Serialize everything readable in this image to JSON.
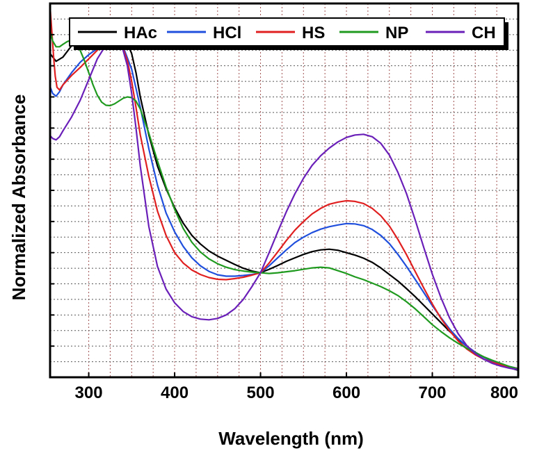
{
  "chart_data": {
    "type": "line",
    "xlabel": "Wavelength (nm)",
    "ylabel": "Normalized Absorbance",
    "xlim": [
      255,
      800
    ],
    "x_ticks": [
      300,
      400,
      500,
      600,
      700,
      800
    ],
    "y_ticks_labeled": false,
    "grid": true,
    "legend_position": "top",
    "series": [
      {
        "name": "HAc",
        "color": "#000000",
        "points": [
          [
            255,
            0.935
          ],
          [
            262,
            0.913
          ],
          [
            270,
            0.925
          ],
          [
            280,
            0.958
          ],
          [
            290,
            0.972
          ],
          [
            300,
            0.967
          ],
          [
            310,
            0.962
          ],
          [
            320,
            0.968
          ],
          [
            330,
            0.972
          ],
          [
            340,
            0.97
          ],
          [
            345,
            0.965
          ],
          [
            350,
            0.935
          ],
          [
            355,
            0.88
          ],
          [
            360,
            0.81
          ],
          [
            370,
            0.7
          ],
          [
            380,
            0.61
          ],
          [
            390,
            0.545
          ],
          [
            400,
            0.49
          ],
          [
            410,
            0.445
          ],
          [
            420,
            0.41
          ],
          [
            430,
            0.385
          ],
          [
            440,
            0.365
          ],
          [
            450,
            0.35
          ],
          [
            460,
            0.338
          ],
          [
            470,
            0.326
          ],
          [
            480,
            0.315
          ],
          [
            490,
            0.307
          ],
          [
            500,
            0.302
          ],
          [
            510,
            0.312
          ],
          [
            520,
            0.323
          ],
          [
            530,
            0.335
          ],
          [
            540,
            0.345
          ],
          [
            550,
            0.355
          ],
          [
            560,
            0.363
          ],
          [
            570,
            0.368
          ],
          [
            580,
            0.37
          ],
          [
            590,
            0.367
          ],
          [
            600,
            0.36
          ],
          [
            610,
            0.353
          ],
          [
            620,
            0.344
          ],
          [
            630,
            0.332
          ],
          [
            640,
            0.316
          ],
          [
            650,
            0.297
          ],
          [
            660,
            0.278
          ],
          [
            670,
            0.256
          ],
          [
            680,
            0.233
          ],
          [
            690,
            0.208
          ],
          [
            700,
            0.183
          ],
          [
            710,
            0.158
          ],
          [
            720,
            0.133
          ],
          [
            730,
            0.11
          ],
          [
            740,
            0.09
          ],
          [
            750,
            0.072
          ],
          [
            760,
            0.058
          ],
          [
            770,
            0.046
          ],
          [
            780,
            0.036
          ],
          [
            790,
            0.027
          ],
          [
            800,
            0.02
          ]
        ]
      },
      {
        "name": "HCl",
        "color": "#1f4fdc",
        "points": [
          [
            255,
            0.84
          ],
          [
            258,
            0.82
          ],
          [
            262,
            0.812
          ],
          [
            266,
            0.825
          ],
          [
            270,
            0.845
          ],
          [
            280,
            0.88
          ],
          [
            290,
            0.91
          ],
          [
            300,
            0.932
          ],
          [
            310,
            0.95
          ],
          [
            320,
            0.965
          ],
          [
            330,
            0.975
          ],
          [
            340,
            0.955
          ],
          [
            350,
            0.89
          ],
          [
            360,
            0.78
          ],
          [
            370,
            0.66
          ],
          [
            380,
            0.555
          ],
          [
            390,
            0.475
          ],
          [
            400,
            0.42
          ],
          [
            410,
            0.378
          ],
          [
            420,
            0.345
          ],
          [
            430,
            0.322
          ],
          [
            440,
            0.306
          ],
          [
            450,
            0.296
          ],
          [
            460,
            0.292
          ],
          [
            470,
            0.292
          ],
          [
            480,
            0.294
          ],
          [
            490,
            0.297
          ],
          [
            500,
            0.302
          ],
          [
            510,
            0.322
          ],
          [
            520,
            0.345
          ],
          [
            530,
            0.368
          ],
          [
            540,
            0.389
          ],
          [
            550,
            0.405
          ],
          [
            560,
            0.418
          ],
          [
            570,
            0.428
          ],
          [
            580,
            0.435
          ],
          [
            590,
            0.44
          ],
          [
            600,
            0.444
          ],
          [
            610,
            0.443
          ],
          [
            620,
            0.438
          ],
          [
            630,
            0.427
          ],
          [
            640,
            0.41
          ],
          [
            650,
            0.386
          ],
          [
            660,
            0.355
          ],
          [
            670,
            0.32
          ],
          [
            680,
            0.283
          ],
          [
            690,
            0.245
          ],
          [
            700,
            0.207
          ],
          [
            710,
            0.172
          ],
          [
            720,
            0.14
          ],
          [
            730,
            0.112
          ],
          [
            740,
            0.09
          ],
          [
            750,
            0.072
          ],
          [
            760,
            0.058
          ],
          [
            770,
            0.047
          ],
          [
            780,
            0.038
          ],
          [
            790,
            0.031
          ],
          [
            800,
            0.025
          ]
        ]
      },
      {
        "name": "HS",
        "color": "#e02020",
        "points": [
          [
            255,
            1.07
          ],
          [
            257,
            1.0
          ],
          [
            259,
            0.93
          ],
          [
            261,
            0.87
          ],
          [
            263,
            0.838
          ],
          [
            266,
            0.83
          ],
          [
            270,
            0.845
          ],
          [
            280,
            0.872
          ],
          [
            290,
            0.895
          ],
          [
            300,
            0.92
          ],
          [
            310,
            0.945
          ],
          [
            320,
            0.968
          ],
          [
            330,
            0.975
          ],
          [
            340,
            0.95
          ],
          [
            345,
            0.915
          ],
          [
            350,
            0.855
          ],
          [
            355,
            0.78
          ],
          [
            360,
            0.7
          ],
          [
            370,
            0.58
          ],
          [
            380,
            0.48
          ],
          [
            390,
            0.41
          ],
          [
            400,
            0.36
          ],
          [
            410,
            0.33
          ],
          [
            420,
            0.31
          ],
          [
            430,
            0.297
          ],
          [
            440,
            0.288
          ],
          [
            450,
            0.283
          ],
          [
            460,
            0.282
          ],
          [
            470,
            0.285
          ],
          [
            480,
            0.289
          ],
          [
            490,
            0.295
          ],
          [
            500,
            0.302
          ],
          [
            510,
            0.33
          ],
          [
            520,
            0.362
          ],
          [
            530,
            0.395
          ],
          [
            540,
            0.425
          ],
          [
            550,
            0.45
          ],
          [
            560,
            0.472
          ],
          [
            570,
            0.488
          ],
          [
            580,
            0.5
          ],
          [
            590,
            0.506
          ],
          [
            600,
            0.51
          ],
          [
            610,
            0.508
          ],
          [
            620,
            0.502
          ],
          [
            630,
            0.488
          ],
          [
            640,
            0.467
          ],
          [
            650,
            0.437
          ],
          [
            660,
            0.398
          ],
          [
            670,
            0.354
          ],
          [
            680,
            0.306
          ],
          [
            690,
            0.258
          ],
          [
            700,
            0.212
          ],
          [
            710,
            0.17
          ],
          [
            720,
            0.135
          ],
          [
            730,
            0.105
          ],
          [
            740,
            0.082
          ],
          [
            750,
            0.065
          ],
          [
            760,
            0.052
          ],
          [
            770,
            0.043
          ],
          [
            780,
            0.036
          ],
          [
            790,
            0.03
          ],
          [
            800,
            0.025
          ]
        ]
      },
      {
        "name": "NP",
        "color": "#1f9a1f",
        "points": [
          [
            255,
            1.0
          ],
          [
            258,
            0.972
          ],
          [
            262,
            0.955
          ],
          [
            266,
            0.955
          ],
          [
            270,
            0.962
          ],
          [
            275,
            0.97
          ],
          [
            280,
            0.974
          ],
          [
            285,
            0.965
          ],
          [
            290,
            0.945
          ],
          [
            295,
            0.915
          ],
          [
            300,
            0.88
          ],
          [
            305,
            0.845
          ],
          [
            310,
            0.815
          ],
          [
            315,
            0.795
          ],
          [
            320,
            0.786
          ],
          [
            325,
            0.785
          ],
          [
            330,
            0.79
          ],
          [
            335,
            0.798
          ],
          [
            340,
            0.806
          ],
          [
            345,
            0.81
          ],
          [
            350,
            0.808
          ],
          [
            355,
            0.798
          ],
          [
            360,
            0.775
          ],
          [
            370,
            0.705
          ],
          [
            380,
            0.625
          ],
          [
            390,
            0.55
          ],
          [
            400,
            0.485
          ],
          [
            410,
            0.43
          ],
          [
            420,
            0.39
          ],
          [
            430,
            0.362
          ],
          [
            440,
            0.342
          ],
          [
            450,
            0.328
          ],
          [
            460,
            0.318
          ],
          [
            470,
            0.311
          ],
          [
            480,
            0.307
          ],
          [
            490,
            0.304
          ],
          [
            500,
            0.302
          ],
          [
            510,
            0.3
          ],
          [
            520,
            0.302
          ],
          [
            530,
            0.305
          ],
          [
            540,
            0.308
          ],
          [
            550,
            0.312
          ],
          [
            560,
            0.316
          ],
          [
            570,
            0.318
          ],
          [
            580,
            0.316
          ],
          [
            590,
            0.308
          ],
          [
            600,
            0.3
          ],
          [
            610,
            0.29
          ],
          [
            620,
            0.282
          ],
          [
            630,
            0.272
          ],
          [
            640,
            0.262
          ],
          [
            650,
            0.25
          ],
          [
            660,
            0.236
          ],
          [
            670,
            0.218
          ],
          [
            680,
            0.198
          ],
          [
            690,
            0.175
          ],
          [
            700,
            0.152
          ],
          [
            710,
            0.132
          ],
          [
            720,
            0.114
          ],
          [
            730,
            0.098
          ],
          [
            740,
            0.084
          ],
          [
            750,
            0.071
          ],
          [
            760,
            0.059
          ],
          [
            770,
            0.049
          ],
          [
            780,
            0.04
          ],
          [
            790,
            0.031
          ],
          [
            800,
            0.024
          ]
        ]
      },
      {
        "name": "CH",
        "color": "#6a1fb8",
        "points": [
          [
            255,
            0.698
          ],
          [
            258,
            0.69
          ],
          [
            262,
            0.686
          ],
          [
            266,
            0.695
          ],
          [
            270,
            0.712
          ],
          [
            280,
            0.752
          ],
          [
            290,
            0.8
          ],
          [
            300,
            0.86
          ],
          [
            310,
            0.92
          ],
          [
            320,
            0.96
          ],
          [
            325,
            0.972
          ],
          [
            330,
            0.975
          ],
          [
            335,
            0.966
          ],
          [
            340,
            0.945
          ],
          [
            345,
            0.9
          ],
          [
            350,
            0.82
          ],
          [
            355,
            0.72
          ],
          [
            360,
            0.61
          ],
          [
            370,
            0.435
          ],
          [
            380,
            0.32
          ],
          [
            390,
            0.255
          ],
          [
            400,
            0.215
          ],
          [
            410,
            0.19
          ],
          [
            420,
            0.175
          ],
          [
            430,
            0.168
          ],
          [
            440,
            0.166
          ],
          [
            450,
            0.17
          ],
          [
            460,
            0.18
          ],
          [
            470,
            0.198
          ],
          [
            480,
            0.225
          ],
          [
            490,
            0.262
          ],
          [
            500,
            0.302
          ],
          [
            510,
            0.36
          ],
          [
            520,
            0.42
          ],
          [
            530,
            0.478
          ],
          [
            540,
            0.53
          ],
          [
            550,
            0.575
          ],
          [
            560,
            0.612
          ],
          [
            570,
            0.64
          ],
          [
            580,
            0.662
          ],
          [
            590,
            0.68
          ],
          [
            600,
            0.693
          ],
          [
            610,
            0.7
          ],
          [
            620,
            0.702
          ],
          [
            630,
            0.695
          ],
          [
            640,
            0.676
          ],
          [
            650,
            0.642
          ],
          [
            660,
            0.592
          ],
          [
            670,
            0.53
          ],
          [
            680,
            0.455
          ],
          [
            690,
            0.375
          ],
          [
            700,
            0.298
          ],
          [
            710,
            0.23
          ],
          [
            720,
            0.172
          ],
          [
            730,
            0.126
          ],
          [
            740,
            0.092
          ],
          [
            750,
            0.068
          ],
          [
            760,
            0.052
          ],
          [
            770,
            0.04
          ],
          [
            780,
            0.032
          ],
          [
            790,
            0.026
          ],
          [
            800,
            0.022
          ]
        ]
      }
    ]
  }
}
